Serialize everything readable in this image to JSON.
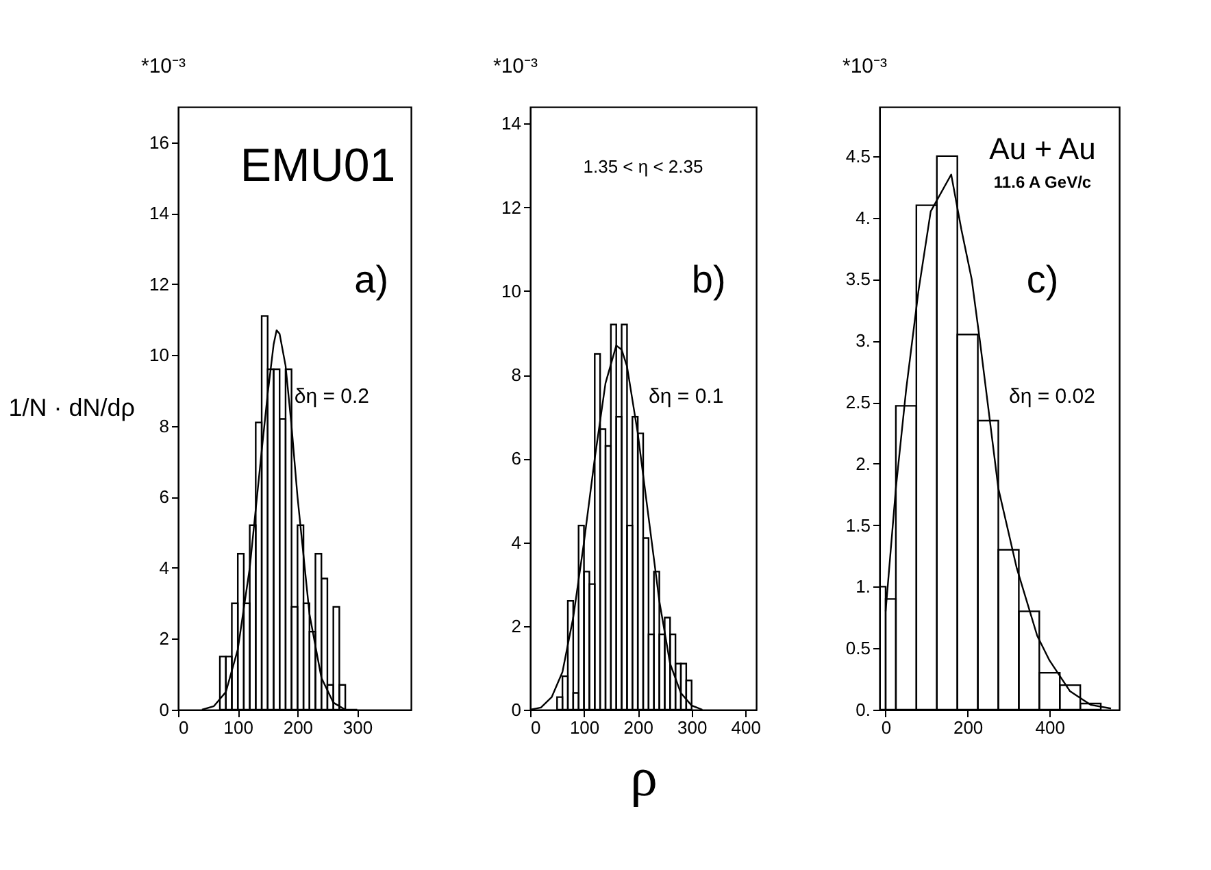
{
  "chart_data": [
    {
      "type": "histogram",
      "ylabel": "1/N · dN/dρ",
      "xlim": [
        0,
        390
      ],
      "xticks": [
        0,
        100,
        200,
        300
      ],
      "ylim": [
        0,
        17
      ],
      "yticks": [
        0,
        2,
        4,
        6,
        8,
        10,
        12,
        14,
        16
      ],
      "grid": false,
      "color": "#000000",
      "bins": [
        70,
        80,
        90,
        100,
        110,
        120,
        130,
        140,
        150,
        160,
        170,
        180,
        190,
        200,
        210,
        220,
        230,
        240,
        250,
        260,
        270,
        280
      ],
      "values": [
        1.5,
        1.5,
        3.0,
        4.4,
        3.0,
        5.2,
        8.1,
        11.1,
        9.6,
        9.6,
        8.2,
        9.6,
        2.9,
        5.2,
        3.0,
        2.2,
        4.4,
        3.7,
        0.7,
        2.9,
        0.7
      ],
      "series": [
        {
          "type": "line",
          "color": "#000000",
          "x": [
            40,
            60,
            80,
            100,
            120,
            140,
            150,
            160,
            165,
            170,
            180,
            190,
            200,
            220,
            240,
            260,
            280,
            300
          ],
          "values": [
            0,
            0.1,
            0.5,
            1.7,
            4.0,
            7.3,
            8.9,
            10.3,
            10.7,
            10.6,
            9.7,
            8.0,
            6.0,
            2.7,
            0.9,
            0.2,
            0,
            0
          ]
        }
      ],
      "annotations": [
        "*10⁻³",
        "EMU01",
        "a)",
        "δη = 0.2"
      ]
    },
    {
      "type": "histogram",
      "xlabel": "ρ",
      "xlim": [
        0,
        420
      ],
      "xticks": [
        0,
        100,
        200,
        300,
        400
      ],
      "ylim": [
        0,
        14.4
      ],
      "yticks": [
        0,
        2,
        4,
        6,
        8,
        10,
        12,
        14
      ],
      "grid": false,
      "color": "#000000",
      "bins": [
        50,
        60,
        70,
        80,
        90,
        100,
        110,
        120,
        130,
        140,
        150,
        160,
        170,
        180,
        190,
        200,
        210,
        220,
        230,
        240,
        250,
        260,
        270,
        280,
        290,
        300
      ],
      "values": [
        0.3,
        0.8,
        2.6,
        0.4,
        4.4,
        3.3,
        3.0,
        8.5,
        6.7,
        6.3,
        9.2,
        7.0,
        9.2,
        4.4,
        7.0,
        6.6,
        4.1,
        1.8,
        3.3,
        1.8,
        2.2,
        1.8,
        1.1,
        1.1,
        0.7
      ],
      "series": [
        {
          "type": "line",
          "color": "#000000",
          "x": [
            0,
            20,
            40,
            60,
            80,
            100,
            120,
            140,
            160,
            170,
            180,
            200,
            220,
            240,
            260,
            280,
            300,
            320
          ],
          "values": [
            0,
            0.05,
            0.3,
            0.9,
            2.2,
            4.0,
            6.0,
            7.8,
            8.7,
            8.6,
            8.2,
            6.6,
            4.6,
            2.6,
            1.1,
            0.4,
            0.1,
            0
          ]
        }
      ],
      "annotations": [
        "*10⁻³",
        "1.35 < η < 2.35",
        "b)",
        "δη = 0.1"
      ]
    },
    {
      "type": "histogram",
      "xlim": [
        -15,
        570
      ],
      "xticks": [
        0,
        200,
        400
      ],
      "ylim": [
        0,
        4.9
      ],
      "yticks": [
        {
          "value": 0,
          "label": "0."
        },
        0.5,
        {
          "value": 1,
          "label": "1."
        },
        1.5,
        {
          "value": 2,
          "label": "2."
        },
        2.5,
        {
          "value": 3,
          "label": "3."
        },
        3.5,
        {
          "value": 4,
          "label": "4."
        },
        4.5
      ],
      "grid": false,
      "color": "#000000",
      "bins": [
        -15,
        0,
        25,
        75,
        125,
        175,
        225,
        275,
        325,
        375,
        425,
        475,
        525
      ],
      "values": [
        1.0,
        0.9,
        2.47,
        4.1,
        4.5,
        3.05,
        2.35,
        1.3,
        0.8,
        0.3,
        0.2,
        0.05
      ],
      "series": [
        {
          "type": "line",
          "color": "#000000",
          "x": [
            0,
            25,
            50,
            80,
            110,
            160,
            185,
            210,
            230,
            275,
            320,
            370,
            400,
            450,
            500,
            550
          ],
          "values": [
            0.8,
            1.8,
            2.6,
            3.4,
            4.05,
            4.35,
            3.9,
            3.5,
            3.0,
            1.8,
            1.15,
            0.6,
            0.4,
            0.15,
            0.04,
            0.01
          ]
        }
      ],
      "annotations": [
        "*10⁻³",
        "Au + Au",
        "11.6 A GeV/c",
        "c)",
        "δη = 0.02"
      ]
    }
  ]
}
